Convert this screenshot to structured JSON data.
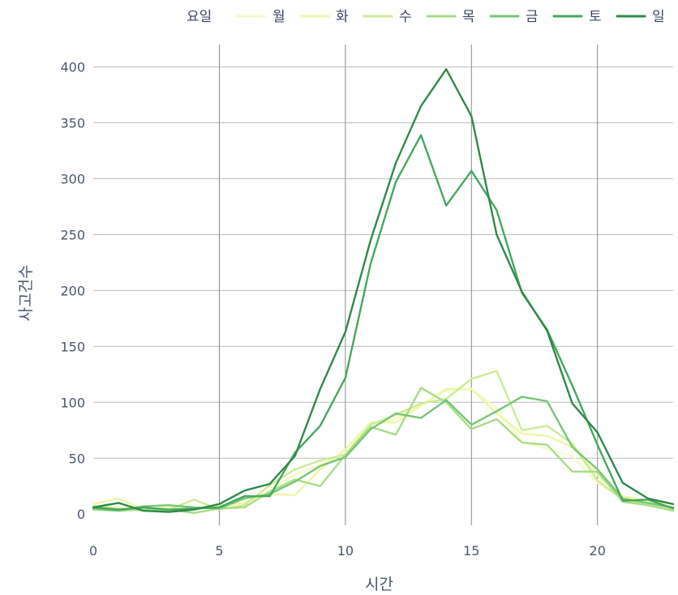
{
  "chart_data": {
    "type": "line",
    "xlabel": "시간",
    "ylabel": "사고건수",
    "xlim": [
      0,
      23
    ],
    "ylim": [
      -10,
      420
    ],
    "xticks": [
      0,
      5,
      10,
      15,
      20
    ],
    "yticks": [
      0,
      50,
      100,
      150,
      200,
      250,
      300,
      350,
      400
    ],
    "grid": true,
    "legend": {
      "title": "요일",
      "placement": "top"
    },
    "x": [
      0,
      1,
      2,
      3,
      4,
      5,
      6,
      7,
      8,
      9,
      10,
      11,
      12,
      13,
      14,
      15,
      16,
      17,
      18,
      19,
      20,
      21,
      22,
      23
    ],
    "series": [
      {
        "name": "월",
        "color": "#f5fbc8",
        "values": [
          8,
          6,
          5,
          4,
          6,
          5,
          9,
          22,
          35,
          44,
          55,
          80,
          85,
          98,
          110,
          112,
          95,
          65,
          58,
          52,
          28,
          14,
          9,
          5
        ]
      },
      {
        "name": "화",
        "color": "#eef7a6",
        "values": [
          9,
          14,
          4,
          6,
          4,
          8,
          10,
          18,
          17,
          40,
          58,
          82,
          82,
          97,
          112,
          112,
          90,
          72,
          70,
          60,
          35,
          16,
          12,
          9
        ]
      },
      {
        "name": "수",
        "color": "#cdeb94",
        "values": [
          7,
          5,
          3,
          4,
          13,
          4,
          8,
          26,
          40,
          48,
          53,
          80,
          89,
          99,
          103,
          121,
          128,
          75,
          79,
          63,
          30,
          13,
          9,
          5
        ]
      },
      {
        "name": "목",
        "color": "#a9dc86",
        "values": [
          4,
          3,
          4,
          4,
          1,
          5,
          6,
          20,
          31,
          25,
          53,
          78,
          71,
          113,
          100,
          76,
          85,
          64,
          62,
          38,
          38,
          11,
          8,
          3
        ]
      },
      {
        "name": "금",
        "color": "#76c776",
        "values": [
          5,
          3,
          7,
          8,
          6,
          5,
          14,
          18,
          29,
          43,
          51,
          76,
          90,
          86,
          102,
          80,
          92,
          105,
          101,
          60,
          40,
          14,
          10,
          6
        ]
      },
      {
        "name": "토",
        "color": "#45a85e",
        "values": [
          6,
          4,
          6,
          4,
          5,
          6,
          16,
          16,
          55,
          79,
          122,
          224,
          297,
          339,
          276,
          307,
          272,
          198,
          165,
          115,
          62,
          12,
          13,
          5
        ]
      },
      {
        "name": "일",
        "color": "#2f8a4a",
        "values": [
          6,
          10,
          3,
          2,
          4,
          9,
          21,
          27,
          52,
          112,
          163,
          245,
          314,
          365,
          398,
          356,
          250,
          199,
          164,
          99,
          73,
          28,
          14,
          9
        ]
      }
    ]
  }
}
